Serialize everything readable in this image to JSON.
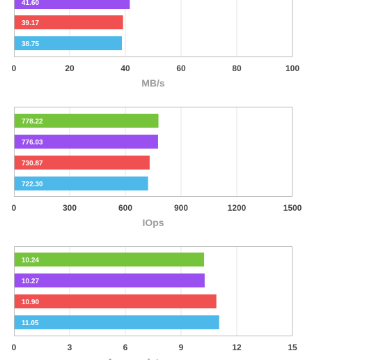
{
  "colors": {
    "series_colors": [
      "#76c43b",
      "#9a4ff0",
      "#f05050",
      "#4db8ea"
    ],
    "grid": "#e6e6e6",
    "frame": "#b8b8b8"
  },
  "chart_data": [
    {
      "type": "bar",
      "orientation": "horizontal",
      "title": "",
      "xlabel": "MB/s",
      "ylabel": "",
      "xlim": [
        0,
        100
      ],
      "ticks": [
        0,
        20,
        40,
        60,
        80,
        100
      ],
      "grid": true,
      "values": [
        41.6,
        39.17,
        38.75
      ],
      "labels": [
        "41.60",
        "39.17",
        "38.75"
      ],
      "series_color_index": [
        1,
        2,
        3
      ]
    },
    {
      "type": "bar",
      "orientation": "horizontal",
      "title": "",
      "xlabel": "IOps",
      "ylabel": "",
      "xlim": [
        0,
        1500
      ],
      "ticks": [
        0,
        300,
        600,
        900,
        1200,
        1500
      ],
      "grid": true,
      "values": [
        778.22,
        776.03,
        730.87,
        722.3
      ],
      "labels": [
        "778.22",
        "776.03",
        "730.87",
        "722.30"
      ],
      "series_color_index": [
        0,
        1,
        2,
        3
      ]
    },
    {
      "type": "bar",
      "orientation": "horizontal",
      "title": "",
      "xlabel": "Average latency, ms",
      "ylabel": "",
      "xlim": [
        0,
        15
      ],
      "ticks": [
        0,
        3,
        6,
        9,
        12,
        15
      ],
      "grid": true,
      "values": [
        10.24,
        10.27,
        10.9,
        11.05
      ],
      "labels": [
        "10.24",
        "10.27",
        "10.90",
        "11.05"
      ],
      "series_color_index": [
        0,
        1,
        2,
        3
      ]
    }
  ]
}
